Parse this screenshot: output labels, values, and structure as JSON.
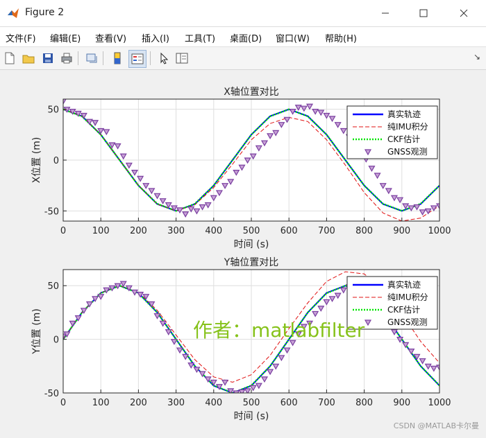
{
  "window": {
    "title": "Figure 2"
  },
  "menu": [
    "文件(F)",
    "编辑(E)",
    "查看(V)",
    "插入(I)",
    "工具(T)",
    "桌面(D)",
    "窗口(W)",
    "帮助(H)"
  ],
  "toolbar_icons": [
    "new-file-icon",
    "open-folder-icon",
    "save-icon",
    "print-icon",
    "link-figure-icon",
    "colorbar-icon",
    "legend-icon",
    "pointer-icon",
    "property-inspector-icon"
  ],
  "watermark": "作者：matlabfilter",
  "credit": "CSDN @MATLAB卡尔曼",
  "colors": {
    "true": "#0000ff",
    "imu": "#e01010",
    "ckf": "#00e600",
    "gnss": "#7a3fa0"
  },
  "chart_data": [
    {
      "type": "line",
      "title": "X轴位置对比",
      "xlabel": "时间 (s)",
      "ylabel": "X位置 (m)",
      "xlim": [
        0,
        1000
      ],
      "ylim": [
        -60,
        60
      ],
      "xticks": [
        0,
        100,
        200,
        300,
        400,
        500,
        600,
        700,
        800,
        900,
        1000
      ],
      "yticks": [
        -50,
        0,
        50
      ],
      "grid": true,
      "legend_position": "top-right",
      "series": [
        {
          "name": "真实轨迹",
          "style": "solid",
          "x": [
            0,
            50,
            100,
            150,
            200,
            250,
            300,
            350,
            400,
            450,
            500,
            550,
            600,
            650,
            700,
            750,
            800,
            850,
            900,
            950,
            1000
          ],
          "values": [
            50,
            43.3,
            25,
            0,
            -25,
            -43.3,
            -50,
            -43.3,
            -25,
            0,
            25,
            43.3,
            50,
            43.3,
            25,
            0,
            -25,
            -43.3,
            -50,
            -43.3,
            -25
          ]
        },
        {
          "name": "纯IMU积分",
          "style": "dashed",
          "x": [
            0,
            50,
            100,
            150,
            200,
            250,
            300,
            350,
            400,
            450,
            500,
            550,
            600,
            650,
            700,
            750,
            800,
            850,
            900,
            950,
            1000
          ],
          "values": [
            50,
            43.3,
            25,
            0,
            -25,
            -43.3,
            -50,
            -44,
            -27,
            -4,
            20,
            36,
            42,
            38,
            20,
            -5,
            -32,
            -52,
            -60,
            -57,
            -45
          ]
        },
        {
          "name": "CKF估计",
          "style": "dotted",
          "x": [
            0,
            50,
            100,
            150,
            200,
            250,
            300,
            350,
            400,
            450,
            500,
            550,
            600,
            650,
            700,
            750,
            800,
            850,
            900,
            950,
            1000
          ],
          "values": [
            50,
            43,
            25,
            0,
            -25,
            -43,
            -50,
            -43,
            -25,
            0,
            25,
            43,
            50,
            43,
            25,
            0,
            -25,
            -43,
            -50,
            -43,
            -25
          ]
        },
        {
          "name": "GNSS观测",
          "style": "marker",
          "x": [
            0,
            10,
            25,
            40,
            55,
            70,
            85,
            100,
            115,
            130,
            145,
            160,
            175,
            190,
            205,
            220,
            235,
            250,
            265,
            280,
            295,
            310,
            325,
            340,
            355,
            370,
            385,
            400,
            415,
            430,
            445,
            460,
            475,
            490,
            505,
            520,
            535,
            550,
            565,
            580,
            595,
            610,
            625,
            640,
            655,
            670,
            685,
            700,
            715,
            730,
            745,
            760,
            775,
            790,
            805,
            820,
            835,
            850,
            865,
            880,
            895,
            910,
            925,
            940,
            955,
            970,
            985,
            1000
          ],
          "values": [
            58,
            50,
            48,
            46,
            44,
            38,
            37,
            29,
            28,
            15,
            14,
            4,
            -5,
            -12,
            -18,
            -25,
            -30,
            -35,
            -40,
            -44,
            -47,
            -49,
            -53,
            -48,
            -50,
            -46,
            -44,
            -37,
            -32,
            -25,
            -21,
            -12,
            -7,
            0,
            4,
            12,
            17,
            24,
            27,
            35,
            40,
            48,
            52,
            51,
            53,
            48,
            47,
            44,
            41,
            35,
            29,
            23,
            18,
            9,
            1,
            -8,
            -15,
            -25,
            -30,
            -37,
            -39,
            -45,
            -47,
            -46,
            -51,
            -50,
            -47,
            -45
          ]
        }
      ]
    },
    {
      "type": "line",
      "title": "Y轴位置对比",
      "xlabel": "时间 (s)",
      "ylabel": "Y位置 (m)",
      "xlim": [
        0,
        1000
      ],
      "ylim": [
        -50,
        65
      ],
      "xticks": [
        0,
        100,
        200,
        300,
        400,
        500,
        600,
        700,
        800,
        900,
        1000
      ],
      "yticks": [
        -50,
        0,
        50
      ],
      "grid": true,
      "legend_position": "top-right",
      "series": [
        {
          "name": "真实轨迹",
          "style": "solid",
          "x": [
            0,
            50,
            100,
            150,
            200,
            250,
            300,
            350,
            400,
            450,
            500,
            550,
            600,
            650,
            700,
            750,
            800,
            850,
            900,
            950,
            1000
          ],
          "values": [
            0,
            25,
            43.3,
            50,
            43.3,
            25,
            0,
            -25,
            -43.3,
            -50,
            -43.3,
            -25,
            0,
            25,
            43.3,
            50,
            43.3,
            25,
            0,
            -25,
            -43.3
          ]
        },
        {
          "name": "纯IMU积分",
          "style": "dashed",
          "x": [
            0,
            50,
            100,
            150,
            200,
            250,
            300,
            350,
            400,
            450,
            500,
            550,
            600,
            650,
            700,
            750,
            800,
            850,
            900,
            950,
            1000
          ],
          "values": [
            0,
            25,
            43.3,
            50,
            44,
            27,
            4,
            -19,
            -35,
            -40,
            -33,
            -15,
            10,
            34,
            54,
            63,
            61,
            46,
            24,
            -2,
            -22
          ]
        },
        {
          "name": "CKF估计",
          "style": "dotted",
          "x": [
            0,
            50,
            100,
            150,
            200,
            250,
            300,
            350,
            400,
            450,
            500,
            550,
            600,
            650,
            700,
            750,
            800,
            850,
            900,
            950,
            1000
          ],
          "values": [
            0,
            25,
            43,
            50,
            43,
            25,
            0,
            -25,
            -43,
            -50,
            -43,
            -25,
            0,
            25,
            43,
            50,
            43,
            25,
            0,
            -25,
            -43
          ]
        },
        {
          "name": "GNSS观测",
          "style": "marker",
          "x": [
            0,
            10,
            25,
            40,
            55,
            70,
            85,
            100,
            115,
            130,
            145,
            160,
            175,
            190,
            205,
            220,
            235,
            250,
            265,
            280,
            295,
            310,
            325,
            340,
            355,
            370,
            385,
            400,
            415,
            430,
            445,
            460,
            475,
            490,
            505,
            520,
            535,
            550,
            565,
            580,
            595,
            610,
            625,
            640,
            655,
            670,
            685,
            700,
            715,
            730,
            745,
            760,
            775,
            790,
            805,
            820,
            835,
            850,
            865,
            880,
            895,
            910,
            925,
            940,
            955,
            970,
            985,
            1000
          ],
          "values": [
            3,
            5,
            15,
            20,
            27,
            33,
            38,
            40,
            46,
            48,
            50,
            52,
            48,
            44,
            42,
            40,
            33,
            22,
            15,
            7,
            -2,
            -10,
            -16,
            -24,
            -28,
            -32,
            -37,
            -40,
            -44,
            -40,
            -48,
            -50,
            -49,
            -48,
            -45,
            -43,
            -37,
            -30,
            -25,
            -17,
            -10,
            -3,
            5,
            12,
            15,
            24,
            29,
            35,
            38,
            41,
            46,
            49,
            45,
            44,
            38,
            32,
            29,
            21,
            15,
            7,
            0,
            -5,
            -11,
            -16,
            -20,
            -25,
            -27,
            -26
          ]
        }
      ]
    }
  ]
}
